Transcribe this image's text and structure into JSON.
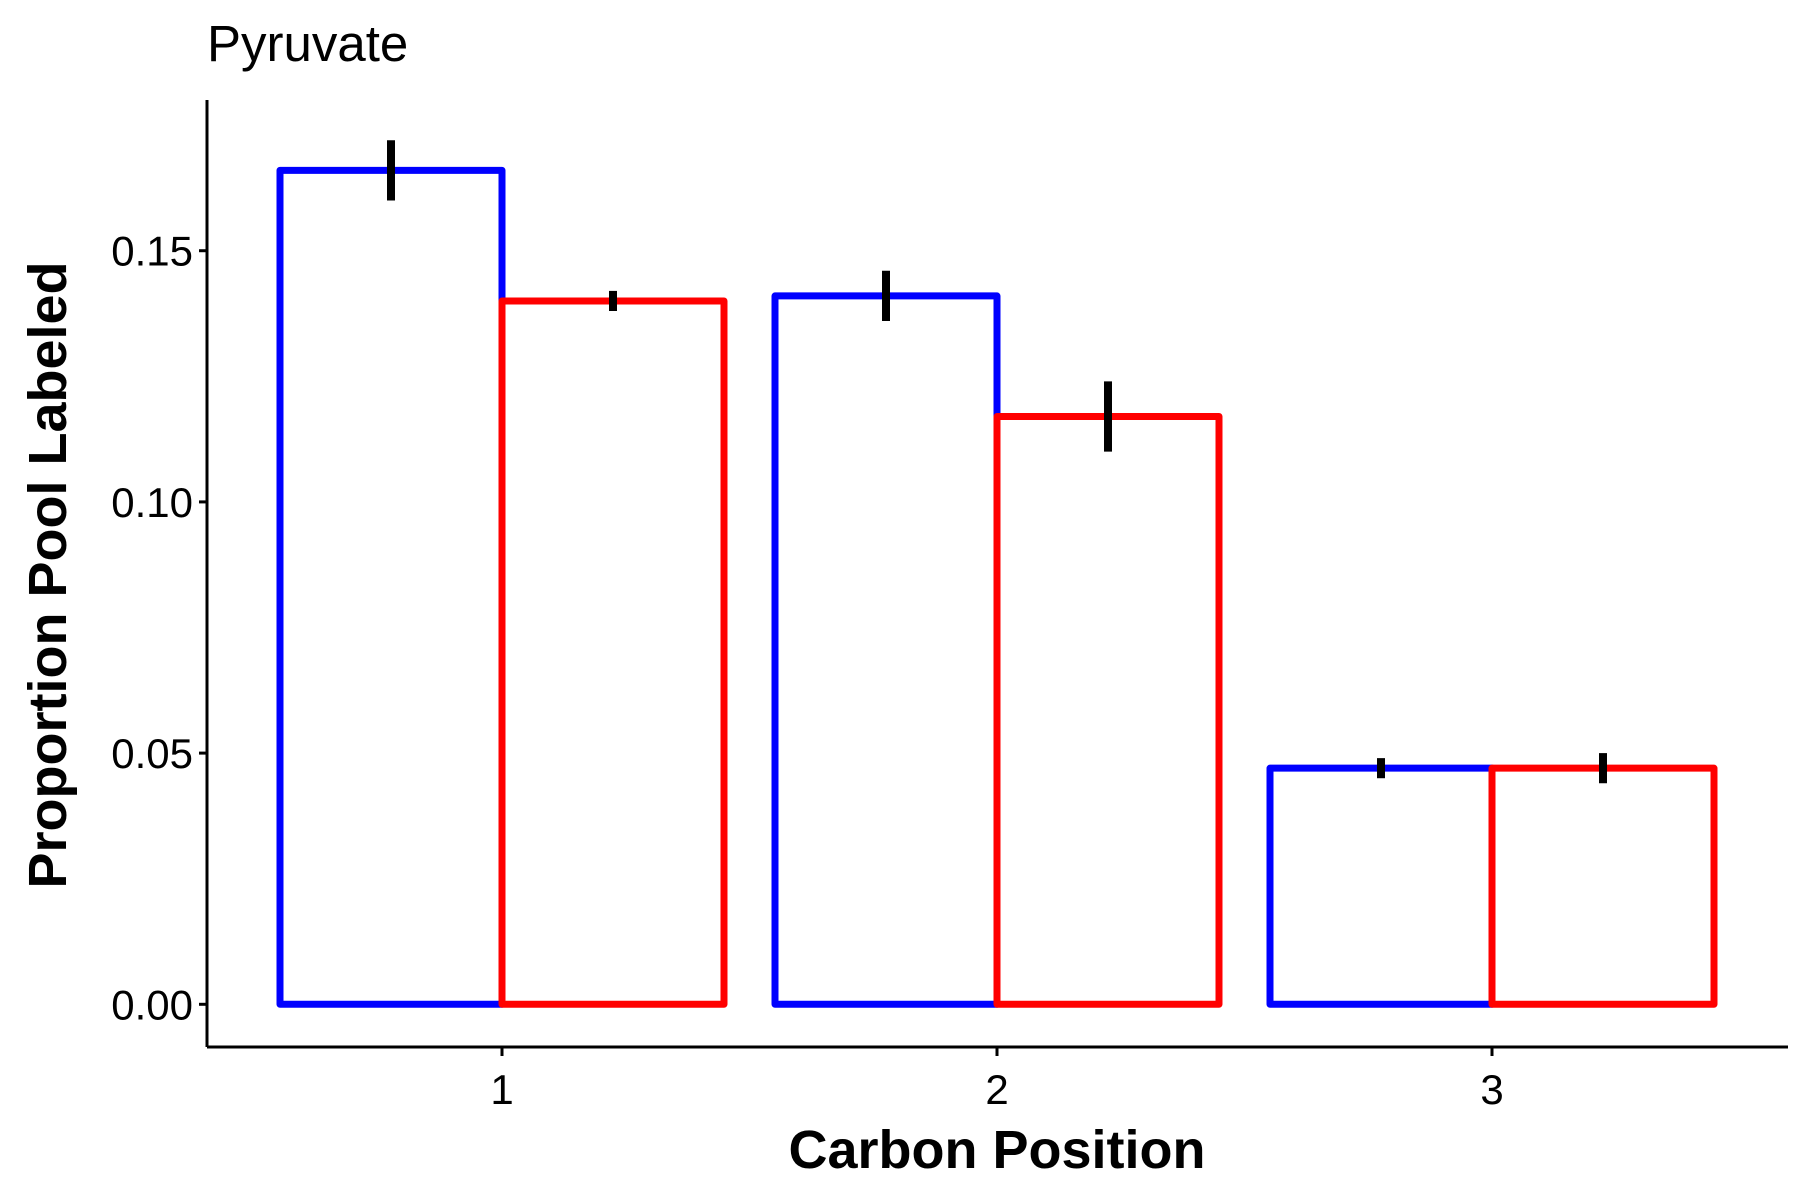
{
  "chart_data": {
    "type": "bar",
    "title": "Pyruvate",
    "xlabel": "Carbon Position",
    "ylabel": "Proportion Pool Labeled",
    "categories": [
      "1",
      "2",
      "3"
    ],
    "ylim": [
      -0.0085,
      0.18
    ],
    "yticks": [
      "0.00",
      "0.05",
      "0.10",
      "0.15"
    ],
    "grid": false,
    "legend": "none",
    "fill_color": "#ffffff",
    "series": [
      {
        "color": "#0000ff",
        "values": [
          0.166,
          0.141,
          0.047
        ],
        "err_low": [
          0.16,
          0.136,
          0.045
        ],
        "err_high": [
          0.172,
          0.146,
          0.049
        ]
      },
      {
        "color": "#ff0000",
        "values": [
          0.14,
          0.117,
          0.047
        ],
        "err_low": [
          0.138,
          0.11,
          0.044
        ],
        "err_high": [
          0.142,
          0.124,
          0.05
        ]
      }
    ]
  }
}
